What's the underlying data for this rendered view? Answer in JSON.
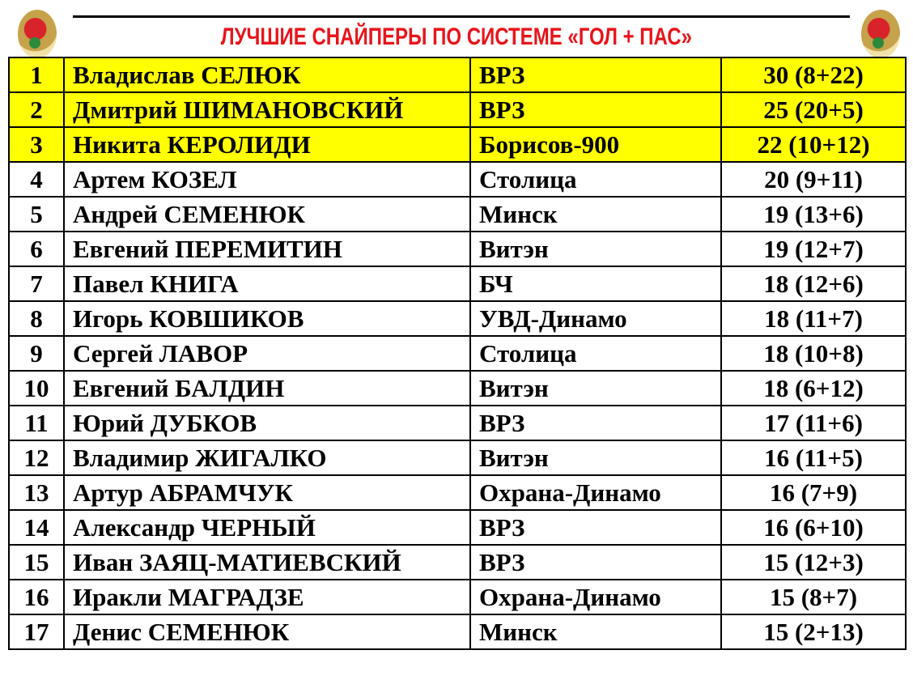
{
  "title": "ЛУЧШИЕ СНАЙПЕРЫ ПО СИСТЕМЕ «ГОЛ + ПАС»",
  "colors": {
    "title": "#e8141b",
    "highlight": "#ffff00"
  },
  "rows": [
    {
      "rank": "1",
      "name": "Владислав СЕЛЮК",
      "team": "ВРЗ",
      "points": "30 (8+22)",
      "highlight": true
    },
    {
      "rank": "2",
      "name": "Дмитрий ШИМАНОВСКИЙ",
      "team": "ВРЗ",
      "points": "25 (20+5)",
      "highlight": true
    },
    {
      "rank": "3",
      "name": "Никита КЕРОЛИДИ",
      "team": "Борисов-900",
      "points": "22 (10+12)",
      "highlight": true
    },
    {
      "rank": "4",
      "name": "Артем КОЗЕЛ",
      "team": "Столица",
      "points": "20 (9+11)"
    },
    {
      "rank": "5",
      "name": "Андрей СЕМЕНЮК",
      "team": "Минск",
      "points": "19 (13+6)"
    },
    {
      "rank": "6",
      "name": "Евгений ПЕРЕМИТИН",
      "team": "Витэн",
      "points": "19 (12+7)"
    },
    {
      "rank": "7",
      "name": "Павел КНИГА",
      "team": "БЧ",
      "points": "18 (12+6)"
    },
    {
      "rank": "8",
      "name": "Игорь КОВШИКОВ",
      "team": "УВД-Динамо",
      "points": "18 (11+7)"
    },
    {
      "rank": "9",
      "name": "Сергей ЛАВОР",
      "team": "Столица",
      "points": "18 (10+8)"
    },
    {
      "rank": "10",
      "name": "Евгений БАЛДИН",
      "team": "Витэн",
      "points": "18 (6+12)"
    },
    {
      "rank": "11",
      "name": "Юрий ДУБКОВ",
      "team": "ВРЗ",
      "points": "17 (11+6)"
    },
    {
      "rank": "12",
      "name": "Владимир ЖИГАЛКО",
      "team": "Витэн",
      "points": "16 (11+5)"
    },
    {
      "rank": "13",
      "name": "Артур АБРАМЧУК",
      "team": "Охрана-Динамо",
      "points": "16 (7+9)"
    },
    {
      "rank": "14",
      "name": "Александр ЧЕРНЫЙ",
      "team": "ВРЗ",
      "points": "16 (6+10)"
    },
    {
      "rank": "15",
      "name": "Иван ЗАЯЦ-МАТИЕВСКИЙ",
      "team": "ВРЗ",
      "points": "15 (12+3)"
    },
    {
      "rank": "16",
      "name": "Иракли МАГРАДЗЕ",
      "team": "Охрана-Динамо",
      "points": "15 (8+7)"
    },
    {
      "rank": "17",
      "name": "Денис СЕМЕНЮК",
      "team": "Минск",
      "points": "15 (2+13)"
    }
  ]
}
